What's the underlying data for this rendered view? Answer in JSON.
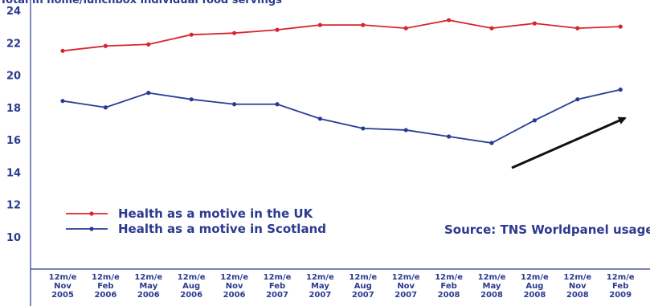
{
  "chart_data": {
    "type": "line",
    "title": "Total in home/lunchbox individual food servings",
    "xlabel": "",
    "ylabel": "",
    "ylim": [
      8,
      24
    ],
    "yticks": [
      10,
      12,
      14,
      16,
      18,
      20,
      22,
      24
    ],
    "categories": [
      [
        "12m/e",
        "Nov",
        "2005"
      ],
      [
        "12m/e",
        "Feb",
        "2006"
      ],
      [
        "12m/e",
        "May",
        "2006"
      ],
      [
        "12m/e",
        "Aug",
        "2006"
      ],
      [
        "12m/e",
        "Nov",
        "2006"
      ],
      [
        "12m/e",
        "Feb",
        "2007"
      ],
      [
        "12m/e",
        "May",
        "2007"
      ],
      [
        "12m/e",
        "Aug",
        "2007"
      ],
      [
        "12m/e",
        "Nov",
        "2007"
      ],
      [
        "12m/e",
        "Feb",
        "2008"
      ],
      [
        "12m/e",
        "May",
        "2008"
      ],
      [
        "12m/e",
        "Aug",
        "2008"
      ],
      [
        "12m/e",
        "Nov",
        "2008"
      ],
      [
        "12m/e",
        "Feb",
        "2009"
      ]
    ],
    "series": [
      {
        "name": "Health as a motive in the UK",
        "color": "#d7262f",
        "values": [
          21.5,
          21.8,
          21.9,
          22.5,
          22.6,
          22.8,
          23.1,
          23.1,
          22.9,
          23.4,
          22.9,
          23.2,
          22.9,
          23.0
        ]
      },
      {
        "name": "Health as a motive in Scotland",
        "color": "#283c96",
        "values": [
          18.4,
          18.0,
          18.9,
          18.5,
          18.2,
          18.2,
          17.3,
          16.7,
          16.6,
          16.2,
          15.8,
          17.2,
          18.5,
          19.1
        ]
      }
    ],
    "annotation": "Source: TNS Worldpanel usage",
    "arrow_direction": "up-right",
    "legend_position": "bottom-left",
    "grid": false
  }
}
